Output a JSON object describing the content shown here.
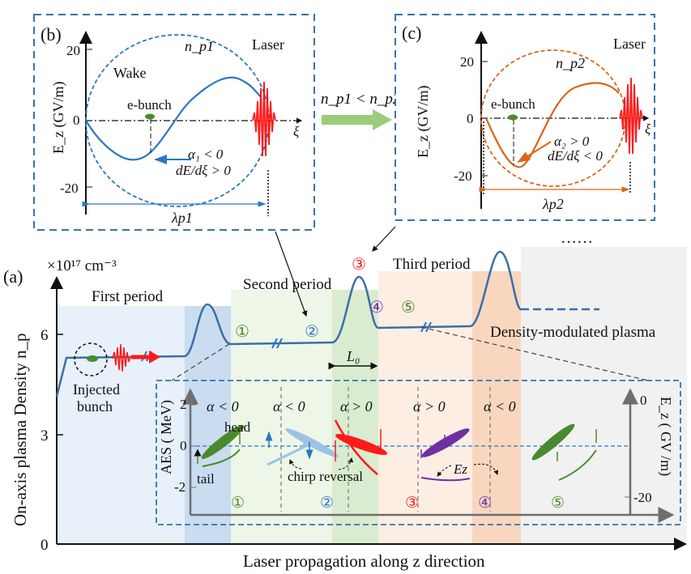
{
  "panel_b": {
    "label": "(b)",
    "y_axis_label": "E_z (GV/m)",
    "ticks": [
      "20",
      "0",
      "-20"
    ],
    "density": "n_p1",
    "wake": "Wake",
    "laser": "Laser",
    "bunch": "e-bunch",
    "condition1": "α₁ < 0",
    "condition2": "dE/dξ > 0",
    "xi": "ξ",
    "wavelength": "λp1"
  },
  "panel_c": {
    "label": "(c)",
    "y_axis_label": "E_z (GV/m)",
    "ticks": [
      "20",
      "0",
      "-20"
    ],
    "density": "n_p2",
    "laser": "Laser",
    "bunch": "e-bunch",
    "condition1": "α₂ > 0",
    "condition2": "dE/dξ < 0",
    "xi": "ξ",
    "wavelength": "λp2"
  },
  "transition_label": "n_p1 < n_p2",
  "ellipsis": "……",
  "panel_a": {
    "label": "(a)",
    "unit": "×10¹⁷ cm⁻³",
    "y_axis_label": "On-axis plasma  Density  n_p",
    "x_axis_label": "Laser propagation along z direction",
    "y_ticks": [
      "6",
      "3",
      "0"
    ],
    "periods": [
      "First  period",
      "Second  period",
      "Third  period"
    ],
    "injected": "Injected",
    "bunch": "bunch",
    "L0": "L₀",
    "modulated": "Density-modulated plasma",
    "markers": [
      "①",
      "②",
      "③",
      "④",
      "⑤"
    ]
  },
  "inset": {
    "left_axis_label": "AES ( MeV)",
    "left_ticks": [
      "2",
      "0",
      "-2"
    ],
    "right_axis_label": "E_z ( GV /m)",
    "right_ticks": [
      "0",
      "-20"
    ],
    "alphas": [
      "α < 0",
      "α < 0",
      "α > 0",
      "α > 0",
      "α < 0"
    ],
    "head": "head",
    "tail": "tail",
    "chirp": "chirp reversal",
    "ez": "Ez",
    "markers": [
      "①",
      "②",
      "③",
      "④",
      "⑤"
    ]
  },
  "colors": {
    "frame": "#3c72aa",
    "wake_blue": "#2a78c2",
    "laser": "#ff1a1a",
    "wake_orange": "#d9661a",
    "green_arrow": "#9ccc7a",
    "bunch_green": "#4a8a2e",
    "purple": "#7030a0"
  }
}
